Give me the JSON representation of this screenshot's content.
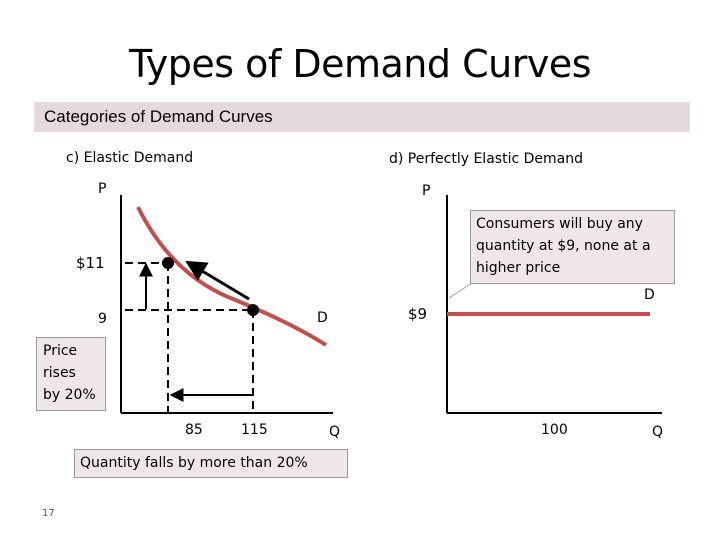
{
  "slide": {
    "title": "Types of Demand Curves",
    "subtitle": "Categories of Demand Curves",
    "page_number": "17"
  },
  "left_panel": {
    "heading": "c) Elastic Demand",
    "y_axis_label": "P",
    "x_axis_label": "Q",
    "price_high": "$11",
    "price_low": "9",
    "qty_low": "85",
    "qty_high": "115",
    "curve_label": "D",
    "price_note": "Price rises by 20%",
    "price_note_lines": [
      "Price",
      "rises",
      "by 20%"
    ],
    "quantity_note": "Quantity falls by more than 20%"
  },
  "right_panel": {
    "heading": "d) Perfectly Elastic Demand",
    "y_axis_label": "P",
    "x_axis_label": "Q",
    "price": "$9",
    "qty": "100",
    "curve_label": "D",
    "callout": "Consumers will buy any quantity at $9, none at a higher price",
    "callout_lines": [
      "Consumers will buy any",
      "quantity at $9, none at a",
      "higher price"
    ]
  },
  "colors": {
    "curve": "#c0504d",
    "axis": "#000000",
    "band": "#e6d9dd",
    "callout_fill": "#efe6e8"
  }
}
